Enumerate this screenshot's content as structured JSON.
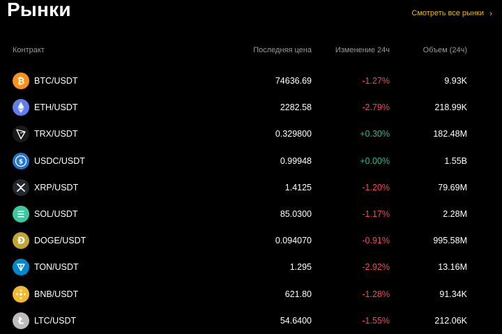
{
  "header": {
    "title": "Рынки",
    "see_all": "Смотреть все рынки"
  },
  "columns": {
    "contract": "Контракт",
    "price": "Последняя цена",
    "change": "Изменение 24ч",
    "volume": "Объем (24ч)"
  },
  "colors": {
    "accent": "#F0B90B",
    "negative": "#F6465D",
    "positive": "#2EBD85"
  },
  "markets": [
    {
      "pair": "BTC/USDT",
      "price": "74636.69",
      "change": "-1.27%",
      "volume": "9.93K",
      "icon": "btc-icon",
      "dir": "neg"
    },
    {
      "pair": "ETH/USDT",
      "price": "2282.58",
      "change": "-2.79%",
      "volume": "218.99K",
      "icon": "eth-icon",
      "dir": "neg"
    },
    {
      "pair": "TRX/USDT",
      "price": "0.329800",
      "change": "+0.30%",
      "volume": "182.48M",
      "icon": "trx-icon",
      "dir": "pos"
    },
    {
      "pair": "USDC/USDT",
      "price": "0.99948",
      "change": "+0.00%",
      "volume": "1.55B",
      "icon": "usdc-icon",
      "dir": "pos"
    },
    {
      "pair": "XRP/USDT",
      "price": "1.4125",
      "change": "-1.20%",
      "volume": "79.69M",
      "icon": "xrp-icon",
      "dir": "neg"
    },
    {
      "pair": "SOL/USDT",
      "price": "85.0300",
      "change": "-1.17%",
      "volume": "2.28M",
      "icon": "sol-icon",
      "dir": "neg"
    },
    {
      "pair": "DOGE/USDT",
      "price": "0.094070",
      "change": "-0.91%",
      "volume": "995.58M",
      "icon": "doge-icon",
      "dir": "neg"
    },
    {
      "pair": "TON/USDT",
      "price": "1.295",
      "change": "-2.92%",
      "volume": "13.16M",
      "icon": "ton-icon",
      "dir": "neg"
    },
    {
      "pair": "BNB/USDT",
      "price": "621.80",
      "change": "-1.28%",
      "volume": "91.34K",
      "icon": "bnb-icon",
      "dir": "neg"
    },
    {
      "pair": "LTC/USDT",
      "price": "54.6400",
      "change": "-1.55%",
      "volume": "212.06K",
      "icon": "ltc-icon",
      "dir": "neg"
    }
  ]
}
